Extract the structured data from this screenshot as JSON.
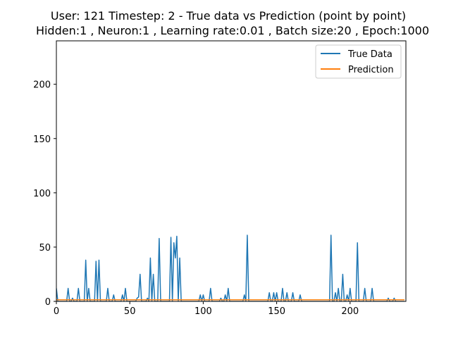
{
  "chart_data": {
    "type": "line",
    "title": "User: 121 Timestep: 2 - True data vs Prediction (point by point)",
    "subtitle": "Hidden:1 , Neuron:1 , Learning rate:0.01 , Batch size:20 , Epoch:1000",
    "xlabel": "",
    "ylabel": "",
    "xlim": [
      0,
      238
    ],
    "ylim": [
      0,
      240
    ],
    "xticks": [
      0,
      50,
      100,
      150,
      200
    ],
    "yticks": [
      0,
      50,
      100,
      150,
      200
    ],
    "grid": false,
    "legend_position": "top-right",
    "series": [
      {
        "name": "True Data",
        "color": "#1f77b4",
        "x": [
          0,
          1,
          2,
          3,
          4,
          5,
          6,
          7,
          8,
          9,
          10,
          11,
          12,
          13,
          14,
          15,
          16,
          17,
          18,
          19,
          20,
          21,
          22,
          23,
          24,
          25,
          26,
          27,
          28,
          29,
          30,
          31,
          32,
          33,
          34,
          35,
          36,
          37,
          38,
          39,
          40,
          41,
          42,
          43,
          44,
          45,
          46,
          47,
          48,
          49,
          50,
          51,
          52,
          53,
          54,
          55,
          56,
          57,
          58,
          59,
          60,
          61,
          62,
          63,
          64,
          65,
          66,
          67,
          68,
          69,
          70,
          71,
          72,
          73,
          74,
          75,
          76,
          77,
          78,
          79,
          80,
          81,
          82,
          83,
          84,
          85,
          86,
          87,
          88,
          89,
          90,
          91,
          92,
          93,
          94,
          95,
          96,
          97,
          98,
          99,
          100,
          101,
          102,
          103,
          104,
          105,
          106,
          107,
          108,
          109,
          110,
          111,
          112,
          113,
          114,
          115,
          116,
          117,
          118,
          119,
          120,
          121,
          122,
          123,
          124,
          125,
          126,
          127,
          128,
          129,
          130,
          131,
          132,
          133,
          134,
          135,
          136,
          137,
          138,
          139,
          140,
          141,
          142,
          143,
          144,
          145,
          146,
          147,
          148,
          149,
          150,
          151,
          152,
          153,
          154,
          155,
          156,
          157,
          158,
          159,
          160,
          161,
          162,
          163,
          164,
          165,
          166,
          167,
          168,
          169,
          170,
          171,
          172,
          173,
          174,
          175,
          176,
          177,
          178,
          179,
          180,
          181,
          182,
          183,
          184,
          185,
          186,
          187,
          188,
          189,
          190,
          191,
          192,
          193,
          194,
          195,
          196,
          197,
          198,
          199,
          200,
          201,
          202,
          203,
          204,
          205,
          206,
          207,
          208,
          209,
          210,
          211,
          212,
          213,
          214,
          215,
          216,
          217,
          218,
          219,
          220,
          221,
          222,
          223,
          224,
          225,
          226,
          227,
          228,
          229,
          230,
          231,
          232,
          233,
          234,
          235,
          236,
          237
        ],
        "values": [
          12,
          0,
          0,
          0,
          0,
          0,
          0,
          0,
          12,
          0,
          0,
          3,
          0,
          0,
          0,
          12,
          0,
          0,
          0,
          0,
          38,
          0,
          12,
          0,
          0,
          0,
          0,
          37,
          0,
          38,
          0,
          0,
          0,
          0,
          0,
          12,
          0,
          0,
          0,
          6,
          0,
          0,
          0,
          0,
          0,
          6,
          0,
          12,
          0,
          0,
          0,
          0,
          0,
          0,
          0,
          3,
          4,
          25,
          0,
          0,
          0,
          0,
          3,
          0,
          40,
          0,
          25,
          0,
          0,
          0,
          58,
          0,
          0,
          0,
          0,
          0,
          0,
          0,
          59,
          0,
          54,
          40,
          60,
          0,
          40,
          0,
          0,
          0,
          0,
          0,
          0,
          0,
          0,
          0,
          0,
          0,
          0,
          0,
          6,
          0,
          6,
          0,
          0,
          0,
          0,
          12,
          0,
          0,
          0,
          0,
          0,
          0,
          3,
          0,
          0,
          6,
          0,
          12,
          0,
          0,
          0,
          0,
          0,
          0,
          0,
          0,
          0,
          0,
          6,
          0,
          61,
          0,
          0,
          0,
          0,
          0,
          0,
          0,
          0,
          0,
          0,
          0,
          0,
          0,
          0,
          8,
          0,
          0,
          8,
          0,
          8,
          0,
          0,
          0,
          12,
          0,
          0,
          8,
          0,
          0,
          0,
          8,
          0,
          0,
          0,
          0,
          6,
          0,
          0,
          0,
          0,
          0,
          0,
          0,
          0,
          0,
          0,
          0,
          0,
          0,
          0,
          0,
          0,
          0,
          0,
          0,
          0,
          61,
          0,
          0,
          8,
          0,
          12,
          0,
          0,
          25,
          0,
          0,
          6,
          0,
          12,
          0,
          0,
          0,
          0,
          54,
          0,
          0,
          0,
          0,
          12,
          0,
          0,
          0,
          0,
          12,
          0,
          0,
          0,
          0,
          0,
          0,
          0,
          0,
          0,
          0,
          3,
          0,
          0,
          0,
          3,
          0,
          0,
          0,
          0,
          0,
          0,
          0
        ]
      },
      {
        "name": "Prediction",
        "color": "#ff7f0e",
        "x": [
          0,
          237
        ],
        "values": [
          1.5,
          1.5
        ]
      }
    ]
  }
}
